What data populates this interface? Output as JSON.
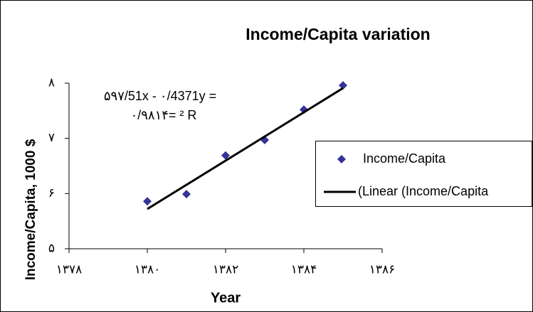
{
  "chart_data": {
    "type": "scatter",
    "title": "Income/Capita variation",
    "xlabel": "Year",
    "ylabel": "Income/Capita, 1000 $",
    "annotations": [
      "۵۹۷/51x - ۰/4371y =",
      "۰/۹۸۱۴= ² R"
    ],
    "xlim": [
      1378,
      1386
    ],
    "xticks": [
      {
        "value": 1378,
        "label": "۱۳۷۸"
      },
      {
        "value": 1380,
        "label": "۱۳۸۰"
      },
      {
        "value": 1382,
        "label": "۱۳۸۲"
      },
      {
        "value": 1384,
        "label": "۱۳۸۴"
      },
      {
        "value": 1386,
        "label": "۱۳۸۶"
      }
    ],
    "ylim": [
      5,
      8
    ],
    "yticks": [
      {
        "value": 5,
        "label": "۵"
      },
      {
        "value": 6,
        "label": "۶"
      },
      {
        "value": 7,
        "label": "۷"
      },
      {
        "value": 8,
        "label": "۸"
      }
    ],
    "legend": "right",
    "series": [
      {
        "name": "Income/Capita",
        "color": "#333399",
        "x": [
          1380,
          1381,
          1382,
          1383,
          1384,
          1385
        ],
        "values": [
          5.86,
          5.99,
          6.69,
          6.97,
          7.52,
          7.96
        ]
      },
      {
        "name": "(Linear (Income/Capita",
        "color": "#000000",
        "line": true,
        "x": [
          1380,
          1385
        ],
        "values": [
          5.72,
          7.91
        ]
      }
    ]
  }
}
